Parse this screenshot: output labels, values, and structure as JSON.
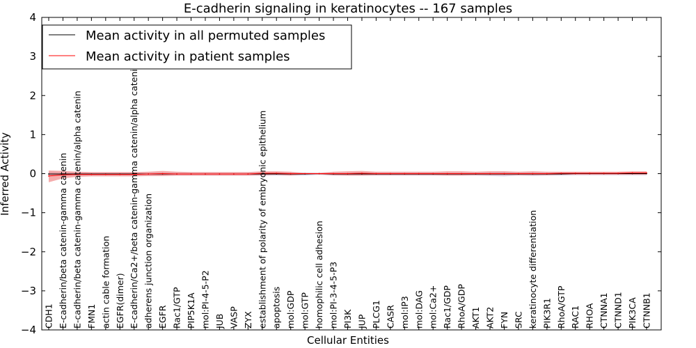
{
  "chart_data": {
    "type": "line",
    "title": "E-cadherin signaling in keratinocytes -- 167 samples",
    "xlabel": "Cellular Entities",
    "ylabel": "Inferred Activity",
    "ylim": [
      -4,
      4
    ],
    "yticks": [
      -4,
      -3,
      -2,
      -1,
      0,
      1,
      2,
      3,
      4
    ],
    "ytick_labels": [
      "−4",
      "−3",
      "−2",
      "−1",
      "0",
      "1",
      "2",
      "3",
      "4"
    ],
    "grid": false,
    "legend_position": "top-left",
    "categories": [
      "CDH1",
      "E-cadherin/beta catenin-gamma catenin",
      "E-cadherin/beta catenin-gamma catenin/alpha catenin",
      "FMN1",
      "actin cable formation",
      "EGFR(dimer)",
      "E-cadherin/Ca2+/beta catenin-gamma catenin/alpha catenin",
      "adherens junction organization",
      "EGFR",
      "Rac1/GTP",
      "PIP5K1A",
      "mol:PI-4-5-P2",
      "JUB",
      "VASP",
      "ZYX",
      "establishment of polarity of embryonic epithelium",
      "apoptosis",
      "mol:GDP",
      "mol:GTP",
      "homophilic cell adhesion",
      "mol:PI-3-4-5-P3",
      "PI3K",
      "JUP",
      "PLCG1",
      "CASR",
      "mol:IP3",
      "mol:DAG",
      "mol:Ca2+",
      "Rac1/GDP",
      "RhoA/GDP",
      "AKT1",
      "AKT2",
      "FYN",
      "SRC",
      "keratinocyte differentiation",
      "PIK3R1",
      "RhoA/GTP",
      "RAC1",
      "RHOA",
      "CTNNA1",
      "CTNND1",
      "PIK3CA",
      "CTNNB1"
    ],
    "series": [
      {
        "name": "Mean activity in all permuted samples",
        "color": "#000000",
        "values": [
          -0.01,
          -0.01,
          -0.01,
          -0.01,
          -0.01,
          -0.01,
          -0.01,
          -0.01,
          -0.01,
          -0.01,
          -0.01,
          -0.01,
          -0.01,
          -0.01,
          -0.01,
          -0.01,
          -0.01,
          -0.01,
          -0.01,
          0,
          -0.01,
          -0.01,
          -0.01,
          -0.01,
          -0.01,
          -0.01,
          -0.01,
          -0.01,
          -0.01,
          -0.01,
          -0.01,
          -0.01,
          -0.01,
          -0.01,
          -0.01,
          -0.01,
          -0.01,
          0,
          0,
          0,
          0,
          0,
          0
        ],
        "band_lower": [
          -0.06,
          -0.05,
          -0.05,
          -0.05,
          -0.05,
          -0.05,
          -0.05,
          -0.05,
          -0.05,
          -0.05,
          -0.05,
          -0.05,
          -0.05,
          -0.05,
          -0.05,
          -0.05,
          -0.05,
          -0.05,
          -0.05,
          -0.03,
          -0.05,
          -0.05,
          -0.05,
          -0.05,
          -0.05,
          -0.05,
          -0.05,
          -0.05,
          -0.05,
          -0.05,
          -0.05,
          -0.06,
          -0.07,
          -0.05,
          -0.06,
          -0.05,
          -0.05,
          -0.04,
          -0.04,
          -0.04,
          -0.04,
          -0.04,
          -0.04
        ],
        "band_upper": [
          0.04,
          0.03,
          0.03,
          0.03,
          0.03,
          0.03,
          0.03,
          0.03,
          0.03,
          0.03,
          0.03,
          0.03,
          0.03,
          0.03,
          0.03,
          0.03,
          0.03,
          0.03,
          0.03,
          0.02,
          0.03,
          0.03,
          0.03,
          0.03,
          0.03,
          0.03,
          0.03,
          0.03,
          0.03,
          0.03,
          0.03,
          0.04,
          0.05,
          0.03,
          0.04,
          0.03,
          0.03,
          0.03,
          0.03,
          0.03,
          0.03,
          0.03,
          0.03
        ],
        "band_color": "#b8b8d8"
      },
      {
        "name": "Mean activity in patient samples",
        "color": "#ff0000",
        "values": [
          -0.06,
          -0.03,
          -0.02,
          -0.02,
          -0.02,
          -0.02,
          -0.02,
          -0.01,
          0.0,
          -0.01,
          -0.01,
          -0.01,
          -0.01,
          -0.01,
          -0.01,
          0.01,
          0.01,
          0.0,
          0.0,
          0.0,
          0.0,
          0.0,
          0.01,
          0.0,
          0.0,
          0.0,
          0.0,
          0.0,
          0.0,
          0.0,
          0.0,
          0.0,
          0.0,
          0.0,
          0.0,
          0.0,
          0.01,
          0.01,
          0.01,
          0.01,
          0.01,
          0.02,
          0.02
        ],
        "band_lower": [
          -0.22,
          -0.12,
          -0.08,
          -0.07,
          -0.07,
          -0.07,
          -0.07,
          -0.06,
          -0.06,
          -0.05,
          -0.05,
          -0.05,
          -0.05,
          -0.05,
          -0.05,
          -0.04,
          -0.03,
          -0.05,
          -0.02,
          -0.02,
          -0.04,
          -0.05,
          -0.05,
          -0.04,
          -0.04,
          -0.04,
          -0.04,
          -0.04,
          -0.05,
          -0.05,
          -0.04,
          -0.04,
          -0.04,
          -0.04,
          -0.04,
          -0.04,
          -0.03,
          -0.03,
          -0.03,
          -0.03,
          -0.03,
          -0.03,
          -0.03
        ],
        "band_upper": [
          0.08,
          0.07,
          0.05,
          0.04,
          0.04,
          0.04,
          0.04,
          0.05,
          0.07,
          0.05,
          0.04,
          0.04,
          0.04,
          0.04,
          0.04,
          0.06,
          0.06,
          0.05,
          0.02,
          0.02,
          0.05,
          0.06,
          0.07,
          0.05,
          0.05,
          0.05,
          0.05,
          0.05,
          0.06,
          0.06,
          0.05,
          0.06,
          0.06,
          0.05,
          0.06,
          0.05,
          0.05,
          0.05,
          0.05,
          0.05,
          0.05,
          0.06,
          0.06
        ],
        "band_color": "#f08080"
      }
    ]
  }
}
